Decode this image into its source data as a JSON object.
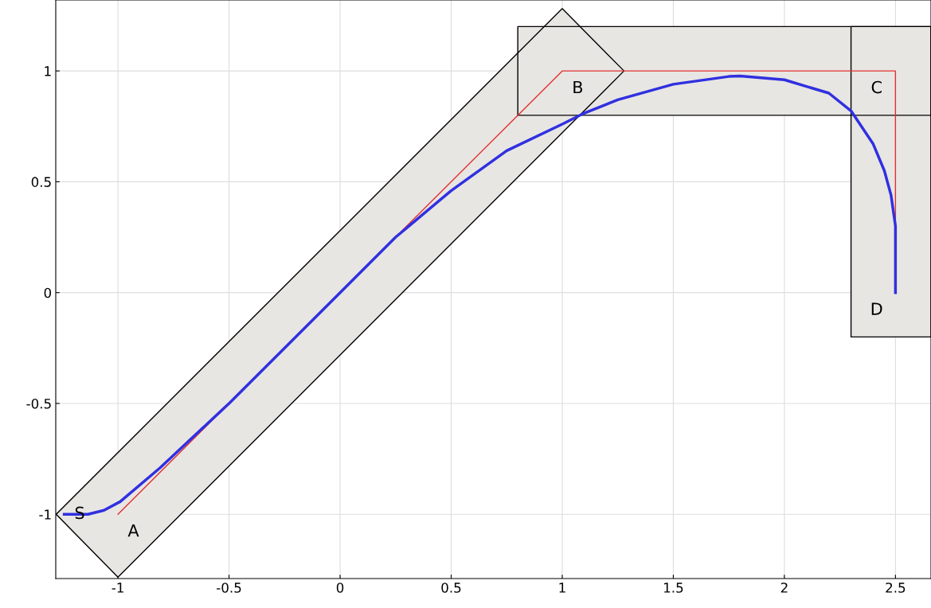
{
  "chart_data": {
    "type": "line",
    "xlim": [
      -1.28,
      2.66
    ],
    "ylim": [
      -1.29,
      1.32
    ],
    "xticks": [
      -1,
      -0.5,
      0,
      0.5,
      1,
      1.5,
      2,
      2.5
    ],
    "yticks": [
      -1,
      -0.5,
      0,
      0.5,
      1
    ],
    "grid": true,
    "legend": false,
    "marker": "none",
    "line_style": "solid",
    "series": [
      {
        "type": "area",
        "color": "#e8e6e3",
        "x": [
          0.8,
          2.66,
          2.66,
          0.8,
          0.8
        ],
        "values": [
          0.8,
          0.8,
          1.2,
          1.2,
          0.8
        ]
      },
      {
        "type": "area",
        "color": "#e8e6e3",
        "x": [
          2.3,
          2.66,
          2.66,
          2.3,
          2.3
        ],
        "values": [
          -0.2,
          -0.2,
          1.2,
          1.2,
          -0.2
        ]
      },
      {
        "type": "area",
        "color": "#e8e6e3",
        "x": [
          -1.278,
          -1,
          1.278,
          1,
          -1.278
        ],
        "values": [
          -1,
          -1.284,
          1,
          1.281,
          -1
        ]
      },
      {
        "color": "#e03030",
        "x": [
          -1,
          1,
          2.5,
          2.5
        ],
        "values": [
          -1,
          1,
          1,
          0
        ]
      },
      {
        "color": "#3030e0",
        "x": [
          -1.242,
          -1.135,
          -1.063,
          -0.99,
          -0.81,
          -0.5,
          0,
          0.25,
          0.5,
          0.75,
          1,
          1.1,
          1.25,
          1.5,
          1.75,
          1.8,
          2.0,
          2.2,
          2.3,
          2.4,
          2.45,
          2.48,
          2.5,
          2.5
        ],
        "values": [
          -1.0,
          -1.0,
          -0.982,
          -0.943,
          -0.79,
          -0.5,
          0,
          0.25,
          0.46,
          0.64,
          0.76,
          0.81,
          0.87,
          0.94,
          0.975,
          0.977,
          0.96,
          0.9,
          0.82,
          0.67,
          0.55,
          0.44,
          0.3,
          0
        ]
      }
    ],
    "annotations": [
      {
        "text": "S",
        "x": -1.242,
        "y": -1
      },
      {
        "text": "A",
        "x": -1,
        "y": -1
      },
      {
        "text": "B",
        "x": 1,
        "y": 1
      },
      {
        "text": "C",
        "x": 2.5,
        "y": 1
      },
      {
        "text": "D",
        "x": 2.5,
        "y": 0
      }
    ]
  }
}
